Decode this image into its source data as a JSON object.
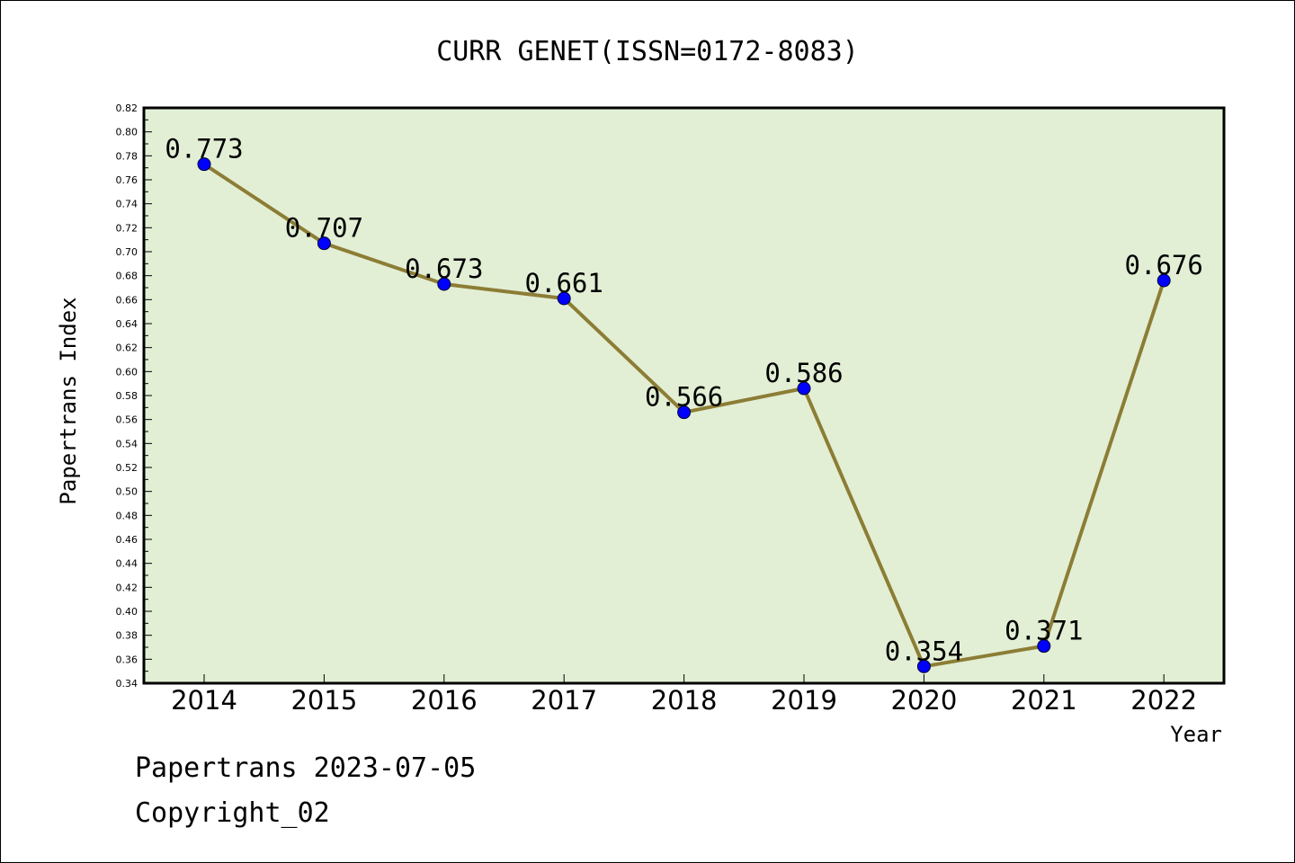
{
  "chart_data": {
    "type": "line",
    "title": "CURR GENET(ISSN=0172-8083)",
    "xlabel": "Year",
    "ylabel": "Papertrans Index",
    "categories": [
      "2014",
      "2015",
      "2016",
      "2017",
      "2018",
      "2019",
      "2020",
      "2021",
      "2022"
    ],
    "series": [
      {
        "values": [
          0.773,
          0.707,
          0.673,
          0.661,
          0.566,
          0.586,
          0.354,
          0.371,
          0.676
        ]
      }
    ],
    "data_labels": [
      "0.773",
      "0.707",
      "0.673",
      "0.661",
      "0.566",
      "0.586",
      "0.354",
      "0.371",
      "0.676"
    ],
    "ylim": [
      0.34,
      0.82
    ],
    "yticks": [
      "0.34",
      "0.36",
      "0.38",
      "0.40",
      "0.42",
      "0.44",
      "0.46",
      "0.48",
      "0.50",
      "0.52",
      "0.54",
      "0.56",
      "0.58",
      "0.60",
      "0.62",
      "0.64",
      "0.66",
      "0.68",
      "0.70",
      "0.72",
      "0.74",
      "0.76",
      "0.78",
      "0.80",
      "0.82"
    ],
    "grid": false,
    "colors": {
      "plot_bg": "#e2efd5",
      "line": "#8c7d35",
      "marker": "#0000ff"
    }
  },
  "footer": {
    "line1": "Papertrans 2023-07-05",
    "line2": "Copyright_02"
  }
}
